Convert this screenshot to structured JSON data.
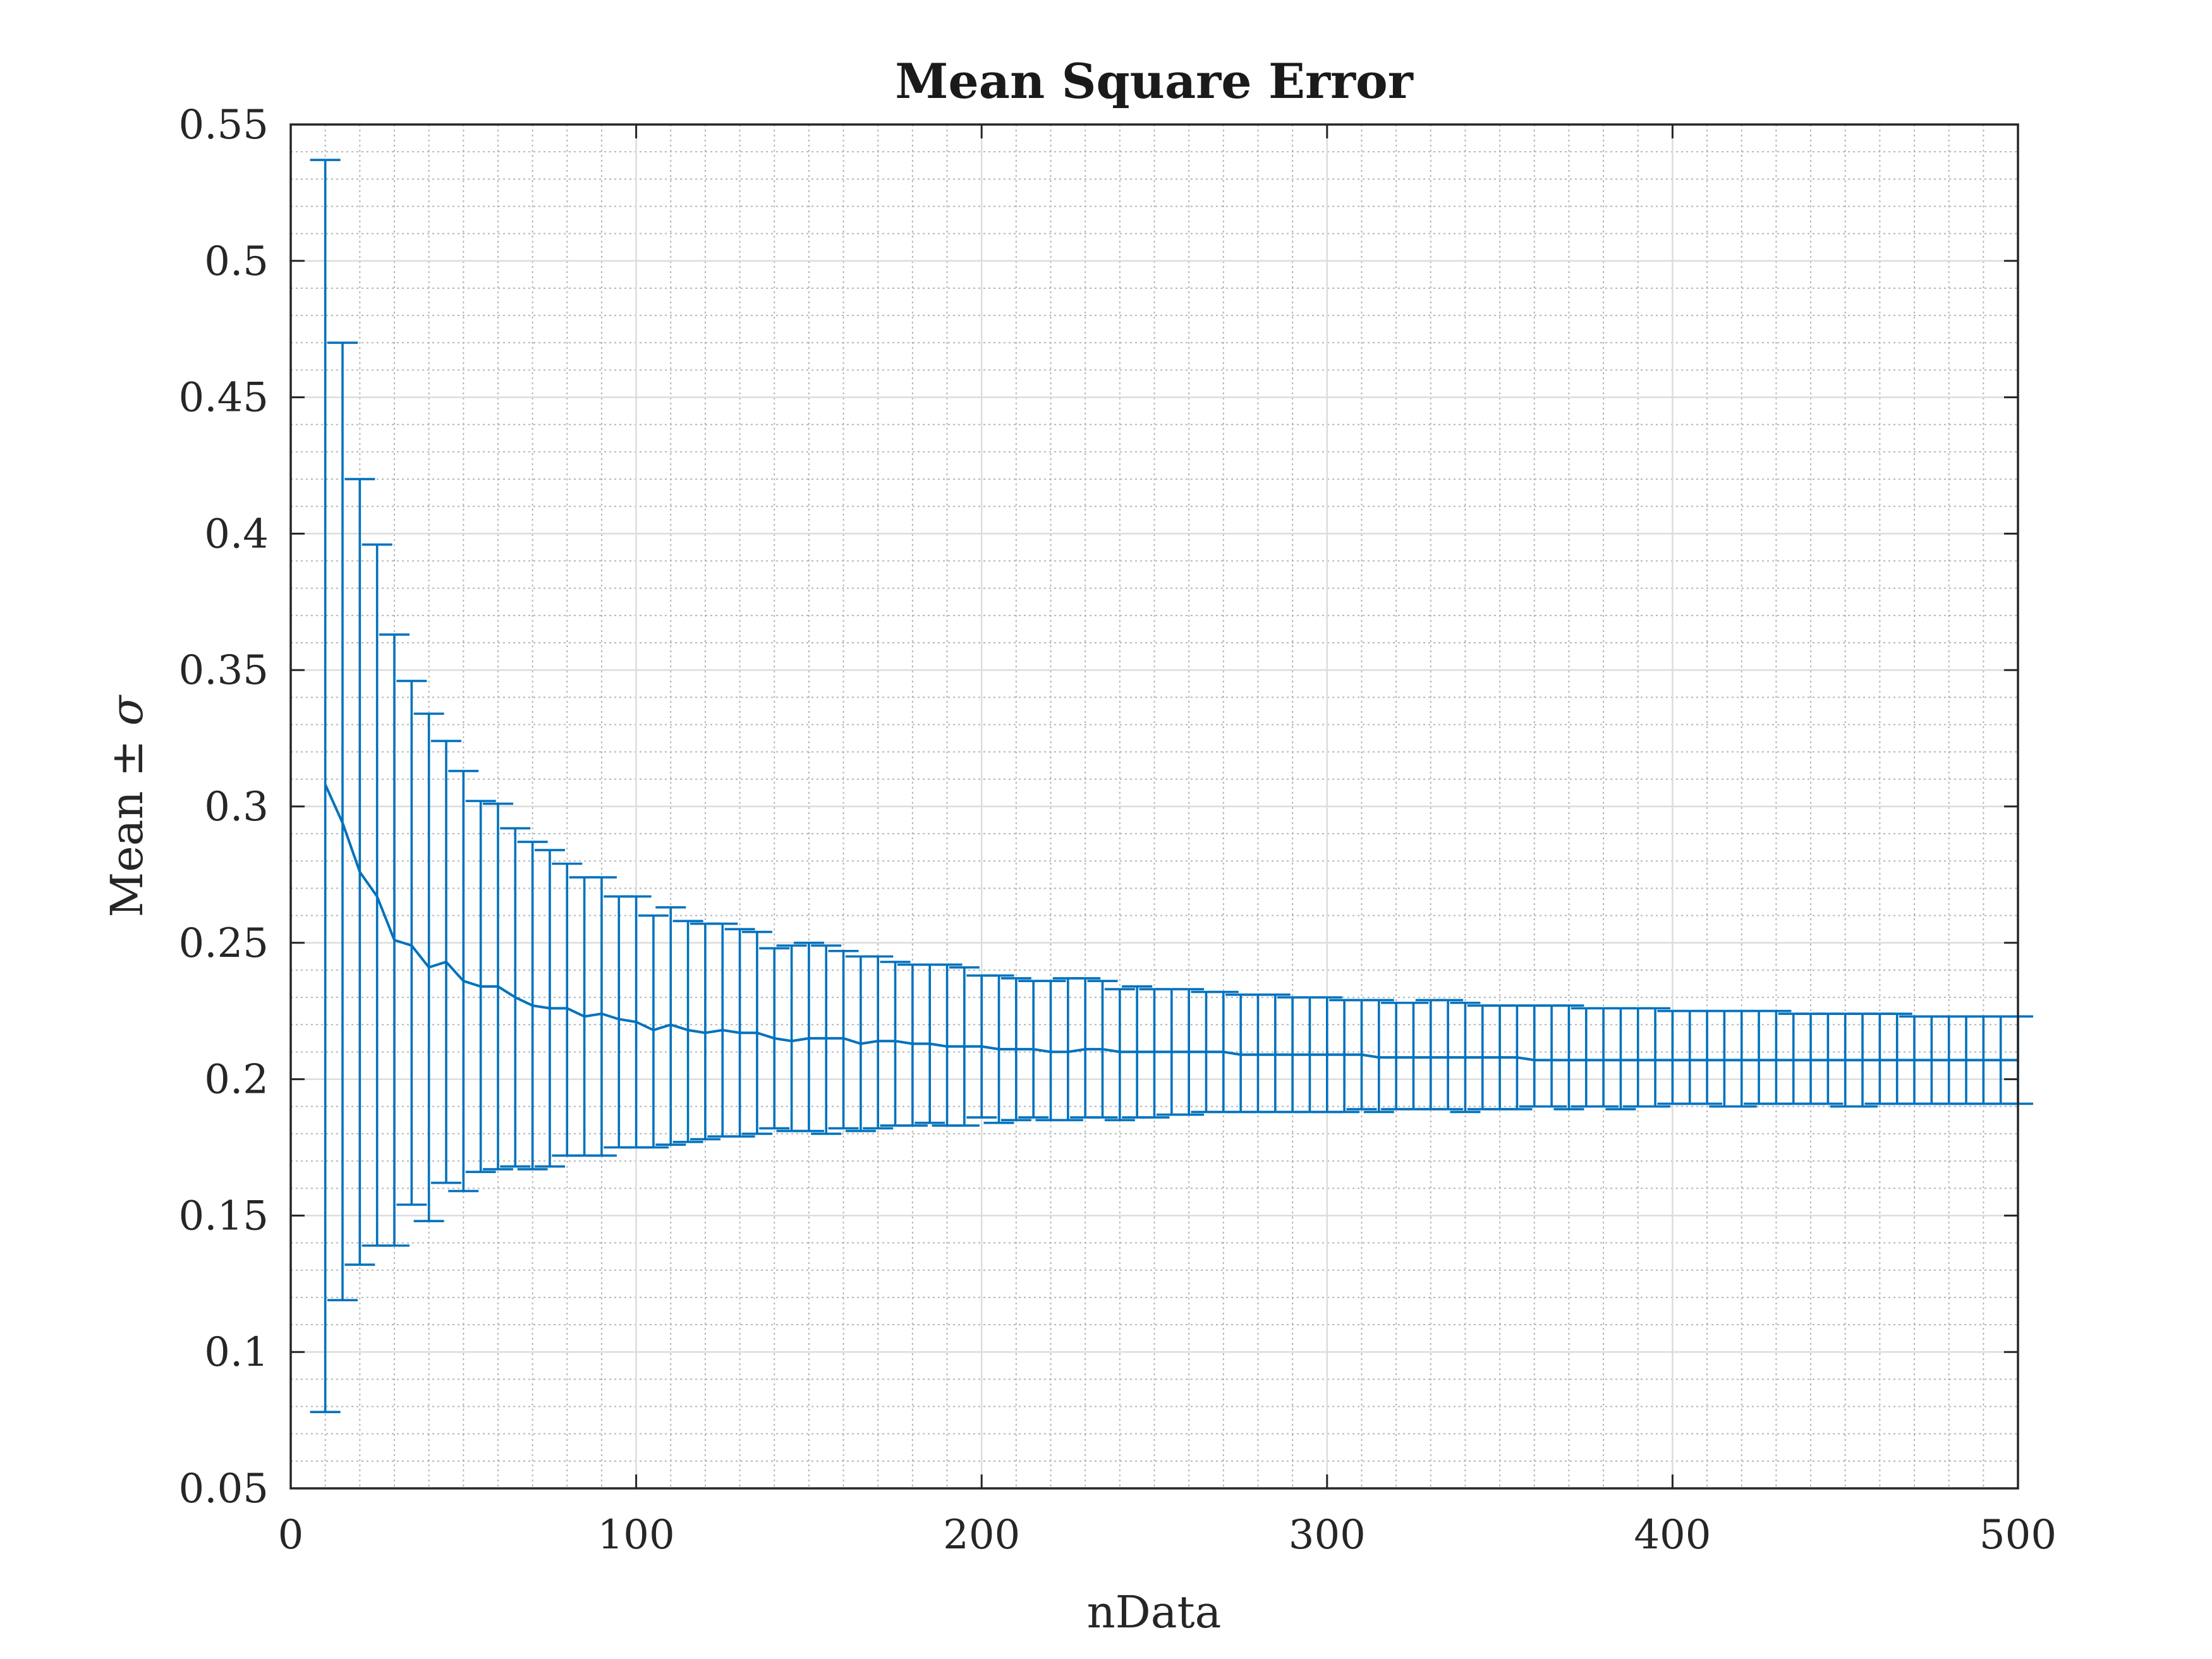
{
  "chart_data": {
    "type": "errorbar",
    "title": "Mean Square Error",
    "xlabel": "nData",
    "ylabel": "Mean ± ",
    "ylabel_symbol": "σ",
    "xlim": [
      0,
      500
    ],
    "ylim": [
      0.05,
      0.55
    ],
    "x_ticks": [
      0,
      100,
      200,
      300,
      400,
      500
    ],
    "x_tick_labels": [
      "0",
      "100",
      "200",
      "300",
      "400",
      "500"
    ],
    "y_ticks": [
      0.05,
      0.1,
      0.15,
      0.2,
      0.25,
      0.3,
      0.35,
      0.4,
      0.45,
      0.5,
      0.55
    ],
    "y_tick_labels": [
      "0.05",
      "0.1",
      "0.15",
      "0.2",
      "0.25",
      "0.3",
      "0.35",
      "0.4",
      "0.45",
      "0.5",
      "0.55"
    ],
    "grid": true,
    "minor_grid": true,
    "color": "#0072BD",
    "x": [
      10,
      15,
      20,
      25,
      30,
      35,
      40,
      45,
      50,
      55,
      60,
      65,
      70,
      75,
      80,
      85,
      90,
      95,
      100,
      105,
      110,
      115,
      120,
      125,
      130,
      135,
      140,
      145,
      150,
      155,
      160,
      165,
      170,
      175,
      180,
      185,
      190,
      195,
      200,
      205,
      210,
      215,
      220,
      225,
      230,
      235,
      240,
      245,
      250,
      255,
      260,
      265,
      270,
      275,
      280,
      285,
      290,
      295,
      300,
      305,
      310,
      315,
      320,
      325,
      330,
      335,
      340,
      345,
      350,
      355,
      360,
      365,
      370,
      375,
      380,
      385,
      390,
      395,
      400,
      405,
      410,
      415,
      420,
      425,
      430,
      435,
      440,
      445,
      450,
      455,
      460,
      465,
      470,
      475,
      480,
      485,
      490,
      495,
      500
    ],
    "upper": [
      0.537,
      0.47,
      0.42,
      0.396,
      0.363,
      0.346,
      0.334,
      0.324,
      0.313,
      0.302,
      0.301,
      0.292,
      0.287,
      0.284,
      0.279,
      0.274,
      0.274,
      0.267,
      0.267,
      0.26,
      0.263,
      0.258,
      0.257,
      0.257,
      0.255,
      0.254,
      0.248,
      0.249,
      0.25,
      0.249,
      0.247,
      0.245,
      0.245,
      0.243,
      0.242,
      0.242,
      0.242,
      0.241,
      0.238,
      0.238,
      0.237,
      0.236,
      0.236,
      0.237,
      0.237,
      0.236,
      0.233,
      0.234,
      0.233,
      0.233,
      0.233,
      0.232,
      0.232,
      0.231,
      0.231,
      0.231,
      0.23,
      0.23,
      0.23,
      0.229,
      0.229,
      0.229,
      0.228,
      0.228,
      0.229,
      0.229,
      0.228,
      0.227,
      0.227,
      0.227,
      0.227,
      0.227,
      0.227,
      0.226,
      0.226,
      0.226,
      0.226,
      0.226,
      0.225,
      0.225,
      0.225,
      0.225,
      0.225,
      0.225,
      0.225,
      0.224,
      0.224,
      0.224,
      0.224,
      0.224,
      0.224,
      0.224,
      0.223,
      0.223,
      0.223,
      0.223,
      0.223,
      0.223,
      0.223
    ],
    "mean": [
      0.308,
      0.294,
      0.276,
      0.267,
      0.251,
      0.249,
      0.241,
      0.243,
      0.236,
      0.234,
      0.234,
      0.23,
      0.227,
      0.226,
      0.226,
      0.223,
      0.224,
      0.222,
      0.221,
      0.218,
      0.22,
      0.218,
      0.217,
      0.218,
      0.217,
      0.217,
      0.215,
      0.214,
      0.215,
      0.215,
      0.215,
      0.213,
      0.214,
      0.214,
      0.213,
      0.213,
      0.212,
      0.212,
      0.212,
      0.211,
      0.211,
      0.211,
      0.21,
      0.21,
      0.211,
      0.211,
      0.21,
      0.21,
      0.21,
      0.21,
      0.21,
      0.21,
      0.21,
      0.209,
      0.209,
      0.209,
      0.209,
      0.209,
      0.209,
      0.209,
      0.209,
      0.208,
      0.208,
      0.208,
      0.208,
      0.208,
      0.208,
      0.208,
      0.208,
      0.208,
      0.207,
      0.207,
      0.207,
      0.207,
      0.207,
      0.207,
      0.207,
      0.207,
      0.207,
      0.207,
      0.207,
      0.207,
      0.207,
      0.207,
      0.207,
      0.207,
      0.207,
      0.207,
      0.207,
      0.207,
      0.207,
      0.207,
      0.207,
      0.207,
      0.207,
      0.207,
      0.207,
      0.207,
      0.207
    ],
    "lower": [
      0.078,
      0.119,
      0.132,
      0.139,
      0.139,
      0.154,
      0.148,
      0.162,
      0.159,
      0.166,
      0.167,
      0.168,
      0.167,
      0.168,
      0.172,
      0.172,
      0.172,
      0.175,
      0.175,
      0.175,
      0.176,
      0.177,
      0.178,
      0.179,
      0.179,
      0.18,
      0.182,
      0.181,
      0.181,
      0.18,
      0.182,
      0.181,
      0.182,
      0.183,
      0.183,
      0.184,
      0.183,
      0.183,
      0.186,
      0.184,
      0.185,
      0.186,
      0.185,
      0.185,
      0.186,
      0.186,
      0.185,
      0.186,
      0.186,
      0.187,
      0.187,
      0.188,
      0.188,
      0.188,
      0.188,
      0.188,
      0.188,
      0.188,
      0.188,
      0.188,
      0.189,
      0.188,
      0.189,
      0.189,
      0.189,
      0.189,
      0.188,
      0.189,
      0.189,
      0.189,
      0.19,
      0.19,
      0.189,
      0.19,
      0.19,
      0.189,
      0.19,
      0.19,
      0.191,
      0.191,
      0.191,
      0.19,
      0.19,
      0.191,
      0.191,
      0.191,
      0.191,
      0.191,
      0.19,
      0.19,
      0.191,
      0.191,
      0.191,
      0.191,
      0.191,
      0.191,
      0.191,
      0.191,
      0.191
    ]
  }
}
